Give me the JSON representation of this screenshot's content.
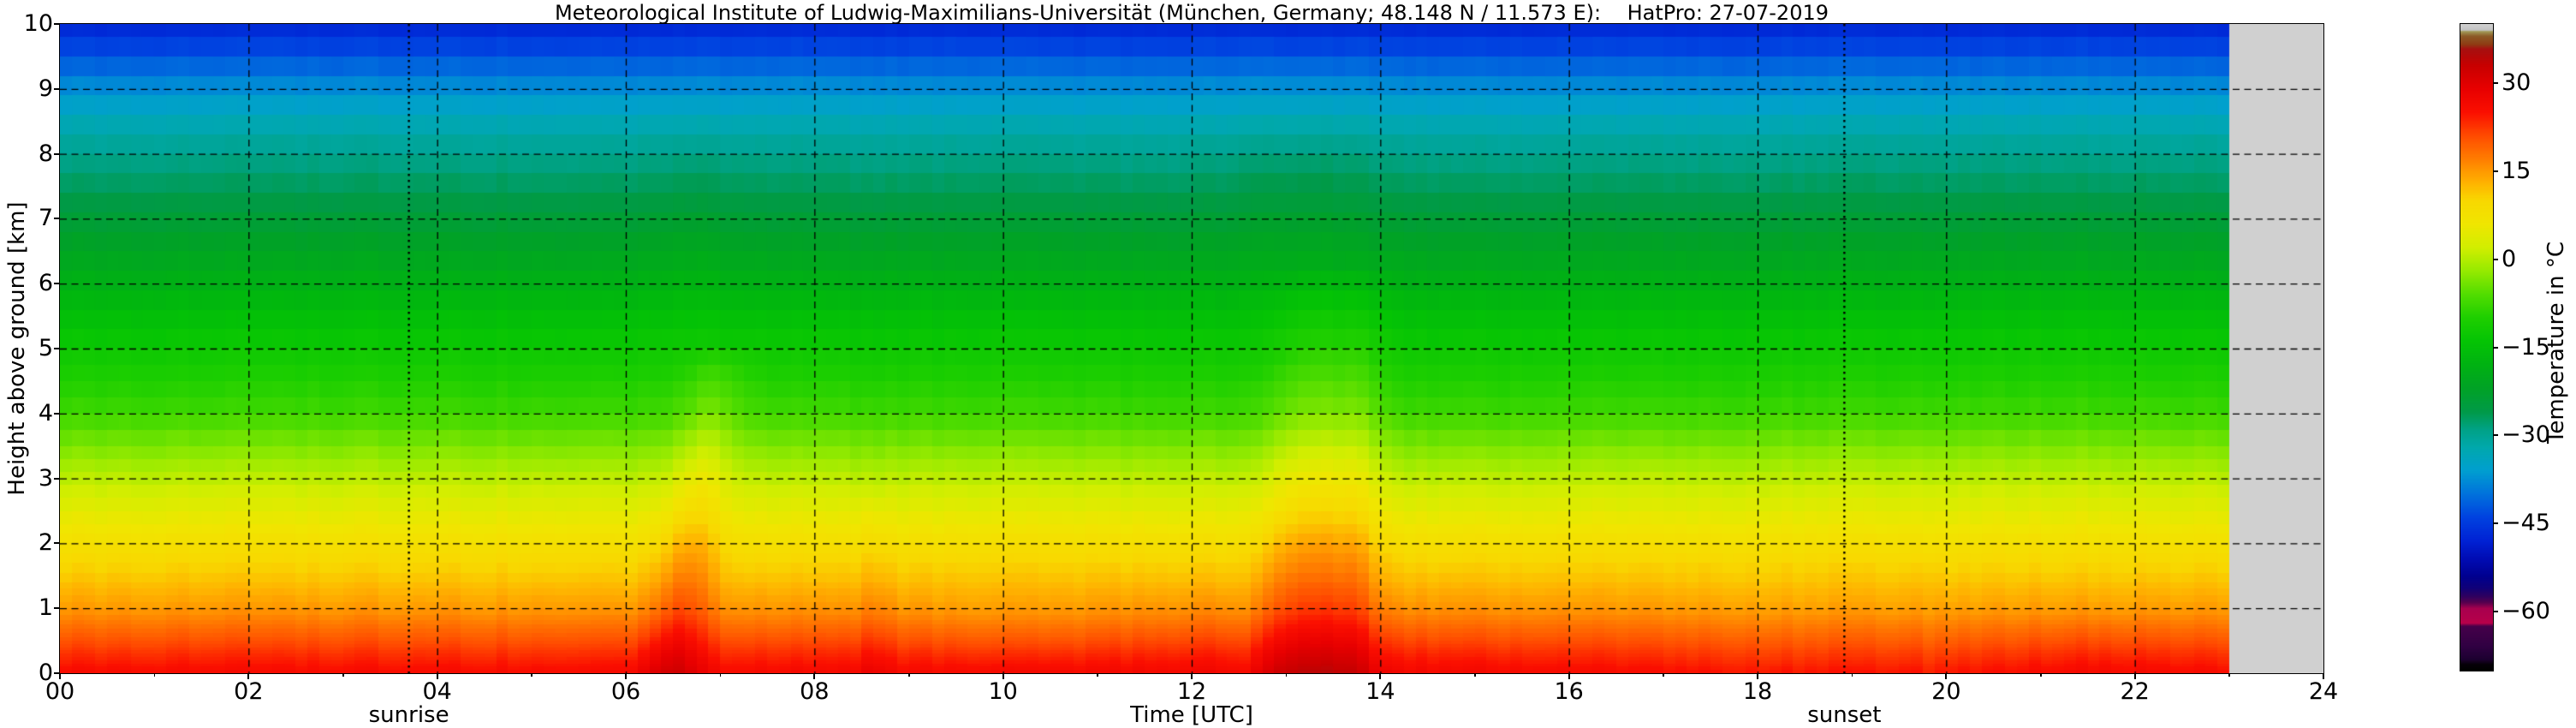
{
  "page": {
    "background": "#ffffff"
  },
  "chart_data": {
    "type": "heatmap",
    "title": "Meteorological Institute of Ludwig-Maximilians-Universität (München, Germany; 48.148 N / 11.573 E):    HatPro: 27-07-2019",
    "xlabel": "Time [UTC]",
    "ylabel": "Height above ground [km]",
    "colorbar_label": "Temperature in °C",
    "x_range_hours": [
      0,
      24
    ],
    "y_range_km": [
      0,
      10
    ],
    "x_ticks": [
      {
        "value": 0,
        "label": "00"
      },
      {
        "value": 2,
        "label": "02"
      },
      {
        "value": 4,
        "label": "04"
      },
      {
        "value": 6,
        "label": "06"
      },
      {
        "value": 8,
        "label": "08"
      },
      {
        "value": 10,
        "label": "10"
      },
      {
        "value": 12,
        "label": "12"
      },
      {
        "value": 14,
        "label": "14"
      },
      {
        "value": 16,
        "label": "16"
      },
      {
        "value": 18,
        "label": "18"
      },
      {
        "value": 20,
        "label": "20"
      },
      {
        "value": 22,
        "label": "22"
      },
      {
        "value": 24,
        "label": "24"
      }
    ],
    "x_minor_hours": [
      1,
      3,
      5,
      7,
      9,
      11,
      13,
      15,
      17,
      19,
      21,
      23
    ],
    "y_ticks": [
      {
        "value": 0,
        "label": "0"
      },
      {
        "value": 1,
        "label": "1"
      },
      {
        "value": 2,
        "label": "2"
      },
      {
        "value": 3,
        "label": "3"
      },
      {
        "value": 4,
        "label": "4"
      },
      {
        "value": 5,
        "label": "5"
      },
      {
        "value": 6,
        "label": "6"
      },
      {
        "value": 7,
        "label": "7"
      },
      {
        "value": 8,
        "label": "8"
      },
      {
        "value": 9,
        "label": "9"
      },
      {
        "value": 10,
        "label": "10"
      }
    ],
    "grid": {
      "x_hours": [
        2,
        4,
        6,
        8,
        10,
        12,
        14,
        16,
        18,
        20,
        22
      ],
      "y_km": [
        1,
        2,
        3,
        4,
        5,
        6,
        7,
        8,
        9
      ]
    },
    "annotations": {
      "sunrise": {
        "label": "sunrise",
        "time_hours": 3.7
      },
      "sunset": {
        "label": "sunset",
        "time_hours": 18.92
      }
    },
    "no_data": {
      "start_hour": 23,
      "end_hour": 24,
      "color": "#d0d0d0"
    },
    "colorbar": {
      "range_c": [
        40,
        -70
      ],
      "ticks": [
        {
          "value": 30,
          "label": "30"
        },
        {
          "value": 15,
          "label": "15"
        },
        {
          "value": 0,
          "label": "0"
        },
        {
          "value": -15,
          "label": "−15"
        },
        {
          "value": -30,
          "label": "−30"
        },
        {
          "value": -45,
          "label": "−45"
        },
        {
          "value": -60,
          "label": "−60"
        }
      ]
    },
    "colormap": [
      [
        40,
        "#d0d0d0"
      ],
      [
        39.0,
        "#c2c2c2"
      ],
      [
        38.8,
        "#a29a58"
      ],
      [
        38.0,
        "#8c5a28"
      ],
      [
        36.6,
        "#8e3c14"
      ],
      [
        35.8,
        "#a61010"
      ],
      [
        33,
        "#c80000"
      ],
      [
        29,
        "#e80000"
      ],
      [
        25,
        "#fb0f00"
      ],
      [
        21,
        "#ff4c00"
      ],
      [
        17,
        "#ff7e00"
      ],
      [
        13,
        "#ffb300"
      ],
      [
        10,
        "#f8d800"
      ],
      [
        6,
        "#f0e600"
      ],
      [
        2,
        "#d2ee00"
      ],
      [
        -2,
        "#96ea00"
      ],
      [
        -6,
        "#52dd00"
      ],
      [
        -10,
        "#1ecf00"
      ],
      [
        -14,
        "#04c404"
      ],
      [
        -18,
        "#00b212"
      ],
      [
        -22,
        "#00a226"
      ],
      [
        -26,
        "#009a48"
      ],
      [
        -29,
        "#00a286"
      ],
      [
        -32,
        "#00a8ac"
      ],
      [
        -36,
        "#009fd0"
      ],
      [
        -40,
        "#0072dc"
      ],
      [
        -44,
        "#0042e0"
      ],
      [
        -48,
        "#0022d4"
      ],
      [
        -51,
        "#000cb4"
      ],
      [
        -54,
        "#000090"
      ],
      [
        -56,
        "#100078"
      ],
      [
        -57.5,
        "#30005e"
      ],
      [
        -58.5,
        "#58004e"
      ],
      [
        -59.5,
        "#a8004e"
      ],
      [
        -62,
        "#b8004a"
      ],
      [
        -62.5,
        "#46004a"
      ],
      [
        -66,
        "#300042"
      ],
      [
        -68.2,
        "#1c0030"
      ],
      [
        -69,
        "#060008"
      ],
      [
        -70,
        "#000000"
      ]
    ],
    "time_step_hours": 0.125,
    "data_end_hour": 23,
    "levels_km": [
      0,
      0.05,
      0.1,
      0.15,
      0.2,
      0.25,
      0.3,
      0.35,
      0.4,
      0.45,
      0.5,
      0.56,
      0.62,
      0.68,
      0.75,
      0.82,
      0.9,
      1.0,
      1.1,
      1.2,
      1.3,
      1.4,
      1.55,
      1.7,
      1.85,
      2.0,
      2.15,
      2.3,
      2.5,
      2.7,
      2.9,
      3.1,
      3.3,
      3.5,
      3.75,
      4.0,
      4.25,
      4.5,
      4.75,
      5.0,
      5.3,
      5.6,
      5.9,
      6.2,
      6.5,
      6.8,
      7.1,
      7.4,
      7.7,
      8.0,
      8.3,
      8.6,
      8.9,
      9.2,
      9.5,
      9.8,
      10.0
    ],
    "baseline_profile": [
      [
        0,
        26
      ],
      [
        0.2,
        24
      ],
      [
        0.4,
        21.8
      ],
      [
        0.6,
        19.5
      ],
      [
        0.8,
        17.2
      ],
      [
        1.0,
        15
      ],
      [
        1.5,
        11.3
      ],
      [
        2.0,
        8
      ],
      [
        2.5,
        4.2
      ],
      [
        3.0,
        0.5
      ],
      [
        3.5,
        -3.5
      ],
      [
        4.0,
        -7.5
      ],
      [
        4.5,
        -10
      ],
      [
        5.0,
        -12.5
      ],
      [
        5.5,
        -15.3
      ],
      [
        6.0,
        -18.5
      ],
      [
        6.5,
        -21.3
      ],
      [
        7.0,
        -24
      ],
      [
        7.4,
        -26.5
      ],
      [
        7.7,
        -28
      ],
      [
        8.0,
        -29.5
      ],
      [
        8.5,
        -33
      ],
      [
        9.0,
        -37.5
      ],
      [
        9.4,
        -41.5
      ],
      [
        9.7,
        -44.5
      ],
      [
        10,
        -48
      ]
    ],
    "anomalies": [
      {
        "name": "sunrise-plume-core",
        "shape": "cone",
        "A": 6.4,
        "t0": 6.5,
        "st": 0.32,
        "env_p": 2,
        "ztop": 5.0,
        "p": 0.35,
        "tilt": 0.1
      },
      {
        "name": "sunrise-plume-upper",
        "shape": "gauss",
        "A": 1.0,
        "t0": 6.7,
        "st": 0.5,
        "env_p": 2,
        "z0": 6.5,
        "sz": 1.6
      },
      {
        "name": "mid-morning-streak",
        "shape": "cone",
        "A": 2.4,
        "t0": 8.62,
        "st": 0.17,
        "env_p": 2,
        "ztop": 2.8,
        "p": 0.5
      },
      {
        "name": "noon-plume-core",
        "shape": "cone",
        "A": 7.2,
        "t0": 13.35,
        "st": 0.58,
        "env_p": 4,
        "ztop": 6.2,
        "p": 0.5,
        "tilt": 0.02
      },
      {
        "name": "noon-plume-upper",
        "shape": "gauss",
        "A": 1.3,
        "t0": 13.25,
        "st": 0.7,
        "env_p": 2,
        "z0": 7.2,
        "sz": 1.7
      },
      {
        "name": "daytime-warm-layer",
        "shape": "cone",
        "A": 1.1,
        "t0": 12.8,
        "st": 3.8,
        "env_p": 2,
        "ztop": 2.6,
        "p": 0.7
      },
      {
        "name": "pre-noon-cool-slot",
        "shape": "cone",
        "A": -2.0,
        "t0": 12.52,
        "st": 0.07,
        "env_p": 2,
        "ztop": 1.8,
        "p": 0.5
      },
      {
        "name": "mid-morning-cool",
        "shape": "gauss",
        "A": -1.2,
        "t0": 10.2,
        "st": 1.1,
        "env_p": 2,
        "z0": 0.7,
        "sz": 0.7
      },
      {
        "name": "evening-cool-low",
        "shape": "cone",
        "A": -1.3,
        "t0": 18.7,
        "st": 2.6,
        "env_p": 2,
        "ztop": 1.6,
        "p": 0.8
      },
      {
        "name": "late-evening-warm-spot",
        "shape": "cone",
        "A": 0.9,
        "t0": 21.6,
        "st": 0.8,
        "env_p": 2,
        "ztop": 0.9,
        "p": 0.6
      },
      {
        "name": "evening-light-column",
        "shape": "cone",
        "A": -1.2,
        "t0": 19.85,
        "st": 0.07,
        "env_p": 2,
        "ztop": 1.2,
        "p": 0.5
      }
    ],
    "noise": {
      "seed": 13,
      "column_amp": 1.1,
      "cell_amp": 0.22
    }
  }
}
